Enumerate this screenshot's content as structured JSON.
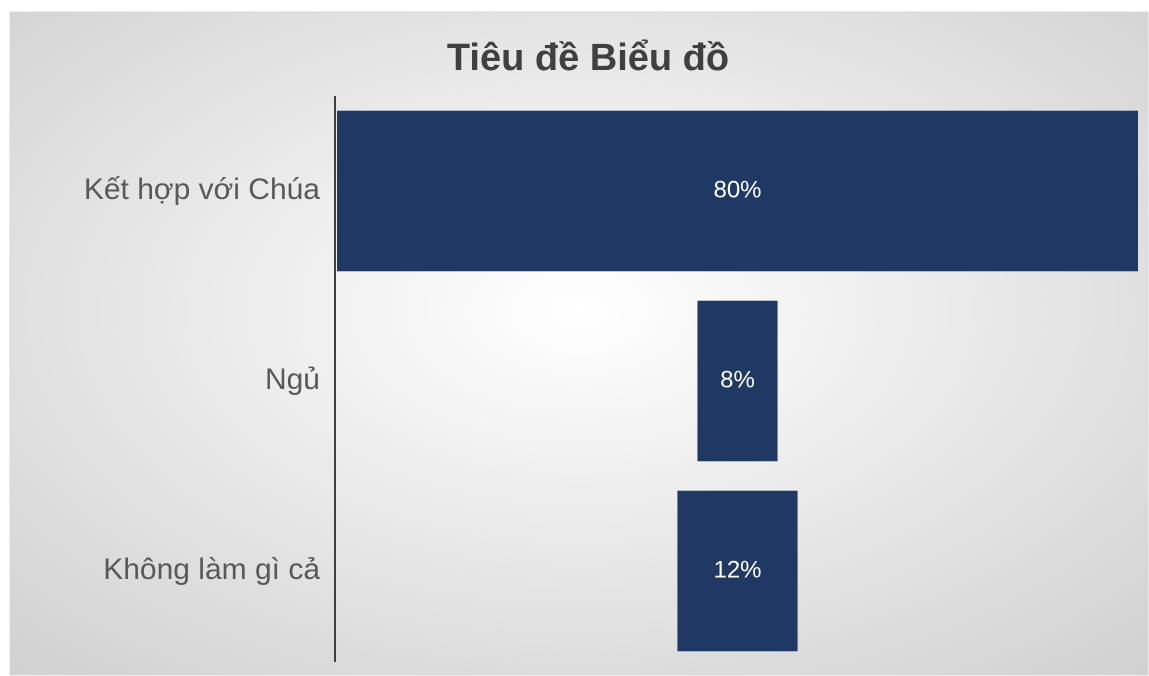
{
  "chart_data": {
    "type": "funnel",
    "title": "Tiêu đề Biểu đồ",
    "categories": [
      "Kết hợp với Chúa",
      "Ngủ",
      "Không làm gì cả"
    ],
    "values": [
      80,
      8,
      12
    ],
    "value_labels": [
      "80%",
      "8%",
      "12%"
    ],
    "color": "#203864"
  }
}
